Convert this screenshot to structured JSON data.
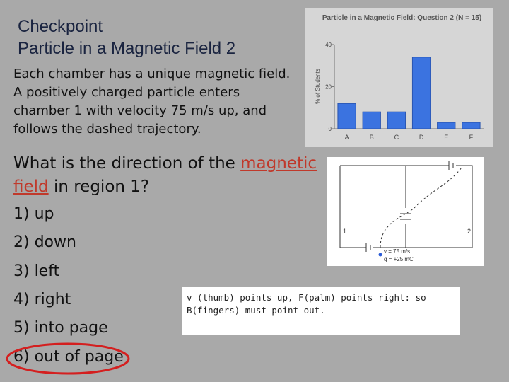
{
  "header": {
    "title": [
      "Checkpoint",
      "Particle in a Magnetic Field 2"
    ]
  },
  "intro": "Each chamber has a unique magnetic field. A positively charged particle enters chamber 1 with velocity 75 m/s up, and follows the dashed trajectory.",
  "question": {
    "before": "What is the direction of the ",
    "highlight": "magnetic field",
    "after": " in region 1?"
  },
  "options": [
    "1) up",
    "2) down",
    "3) left",
    "4) right",
    "5) into page",
    "6) out of page"
  ],
  "explanation": "v (thumb) points up, F(palm) points right: so B(fingers) must point out.",
  "diagram": {
    "region_labels": [
      "1",
      "2"
    ],
    "velocity": "v = 75 m/s",
    "charge": "q = +25 mC"
  },
  "chart_data": {
    "type": "bar",
    "title": "Particle in a Magnetic Field: Question 2 (N = 15)",
    "y_label": "% of Students",
    "categories": [
      "A",
      "B",
      "C",
      "D",
      "E",
      "F"
    ],
    "values": [
      12,
      8,
      8,
      34,
      3,
      3
    ],
    "color": "#3b73e0",
    "ylim": [
      0,
      40
    ],
    "yticks": [
      0,
      20,
      40
    ],
    "grid": false
  }
}
